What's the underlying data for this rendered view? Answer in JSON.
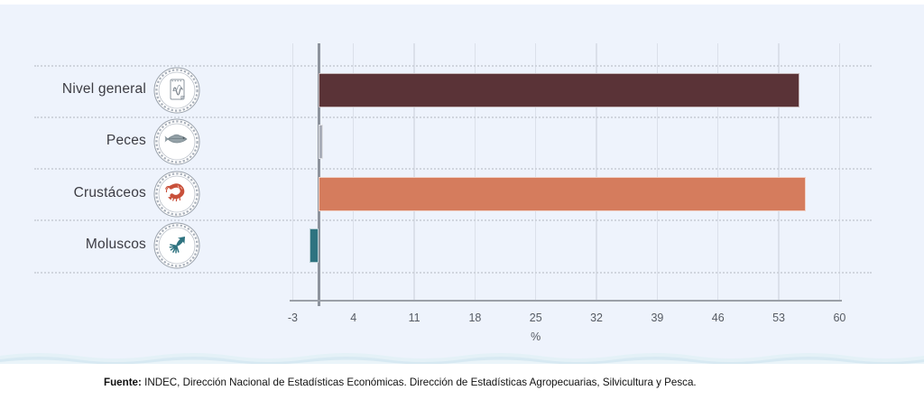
{
  "chart_data": {
    "type": "bar",
    "orientation": "horizontal",
    "categories": [
      "Nivel general",
      "Peces",
      "Crustáceos",
      "Moluscos"
    ],
    "values": [
      55.4,
      0.5,
      56.1,
      -1.1
    ],
    "bar_colors": [
      "#5a3337",
      "#a9adb8",
      "#d57c5d",
      "#2e7380"
    ],
    "category_icons": [
      "line-chart-note-icon",
      "fish-icon",
      "shrimp-icon",
      "squid-icon"
    ],
    "xlabel": "%",
    "xticks": [
      -3,
      4,
      11,
      18,
      25,
      32,
      39,
      46,
      53,
      60
    ],
    "xlim": [
      -3,
      60
    ],
    "grid": "vertical gridlines, dotted horizontal row separators",
    "legend": "none"
  },
  "footer": {
    "source_label": "Fuente:",
    "source_text": "INDEC, Dirección Nacional de Estadísticas Económicas. Dirección de Estadísticas Agropecuarias, Silvicultura y Pesca."
  }
}
